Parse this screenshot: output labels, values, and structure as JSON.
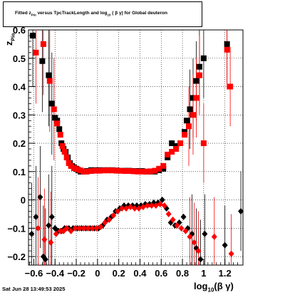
{
  "chart_data": {
    "type": "scatter",
    "title": "Fitted z_Pio versus TpcTrackLength and log10(βγ) for Global deuteron",
    "title_parts": [
      "Fitted  z",
      "Pio",
      "   versus TpcTrackLength and log",
      "10",
      " ( β γ) for Global deuteron"
    ],
    "xlabel": "log10(β γ)",
    "xlabel_parts": [
      "log",
      "10",
      "(β γ)"
    ],
    "ylabel": "z_Pio",
    "ylabel_parts": [
      "z",
      "Pio"
    ],
    "xlim": [
      -0.65,
      1.37
    ],
    "ylim": [
      -0.23,
      0.6
    ],
    "x_ticks": [
      -0.6,
      -0.4,
      -0.2,
      0,
      0.2,
      0.4,
      0.6,
      0.8,
      1,
      1.2
    ],
    "x_tick_labels": [
      "−0.6",
      "−0.4",
      "−0.2",
      "0",
      "0.2",
      "0.4",
      "0.6",
      "0.8",
      "1",
      "1.2"
    ],
    "y_ticks": [
      -0.2,
      -0.1,
      0,
      0.1,
      0.2,
      0.3,
      0.4,
      0.5,
      0.6
    ],
    "y_tick_labels": [
      "−0.2",
      "−0.1",
      "0",
      "0.1",
      "0.2",
      "0.3",
      "0.4",
      "0.5",
      "0.6"
    ],
    "grid": true,
    "series": [
      {
        "color": "#000000",
        "marker": "square",
        "points": [
          [
            -0.61,
            0.58
          ],
          [
            -0.52,
            0.49
          ],
          [
            -0.46,
            0.44
          ],
          [
            -0.43,
            0.34
          ],
          [
            -0.4,
            0.29
          ],
          [
            -0.38,
            0.28
          ],
          [
            -0.36,
            0.25
          ],
          [
            -0.34,
            0.2
          ],
          [
            -0.32,
            0.18
          ],
          [
            -0.3,
            0.17
          ],
          [
            -0.28,
            0.15
          ],
          [
            -0.26,
            0.13
          ],
          [
            -0.24,
            0.12
          ],
          [
            -0.22,
            0.115
          ],
          [
            -0.2,
            0.11
          ],
          [
            -0.18,
            0.105
          ],
          [
            -0.16,
            0.1
          ],
          [
            -0.14,
            0.1
          ],
          [
            -0.12,
            0.1
          ],
          [
            -0.1,
            0.102
          ],
          [
            -0.06,
            0.105
          ],
          [
            -0.02,
            0.105
          ],
          [
            0.02,
            0.105
          ],
          [
            0.06,
            0.105
          ],
          [
            0.1,
            0.105
          ],
          [
            0.14,
            0.105
          ],
          [
            0.18,
            0.104
          ],
          [
            0.22,
            0.103
          ],
          [
            0.26,
            0.103
          ],
          [
            0.3,
            0.103
          ],
          [
            0.34,
            0.102
          ],
          [
            0.38,
            0.102
          ],
          [
            0.42,
            0.102
          ],
          [
            0.46,
            0.1
          ],
          [
            0.5,
            0.1
          ],
          [
            0.54,
            0.1
          ],
          [
            0.58,
            0.105
          ],
          [
            0.62,
            0.11
          ],
          [
            0.66,
            0.15
          ],
          [
            0.7,
            0.2
          ],
          [
            0.74,
            0.19
          ],
          [
            0.78,
            0.2
          ],
          [
            0.82,
            0.24
          ],
          [
            0.84,
            0.28
          ],
          [
            0.87,
            0.32
          ],
          [
            0.9,
            0.36
          ],
          [
            0.93,
            0.42
          ],
          [
            0.96,
            0.47
          ],
          [
            1.0,
            0.5
          ],
          [
            1.22,
            0.55
          ]
        ]
      },
      {
        "color": "#ff0000",
        "marker": "square",
        "points": [
          [
            -0.58,
            0.52
          ],
          [
            -0.51,
            0.55
          ],
          [
            -0.45,
            0.42
          ],
          [
            -0.41,
            0.32
          ],
          [
            -0.38,
            0.27
          ],
          [
            -0.35,
            0.23
          ],
          [
            -0.33,
            0.19
          ],
          [
            -0.31,
            0.17
          ],
          [
            -0.29,
            0.15
          ],
          [
            -0.27,
            0.13
          ],
          [
            -0.25,
            0.12
          ],
          [
            -0.22,
            0.112
          ],
          [
            -0.19,
            0.108
          ],
          [
            -0.16,
            0.104
          ],
          [
            -0.13,
            0.1
          ],
          [
            -0.1,
            0.1
          ],
          [
            -0.06,
            0.102
          ],
          [
            -0.02,
            0.103
          ],
          [
            0.02,
            0.103
          ],
          [
            0.06,
            0.104
          ],
          [
            0.1,
            0.104
          ],
          [
            0.14,
            0.104
          ],
          [
            0.18,
            0.103
          ],
          [
            0.22,
            0.103
          ],
          [
            0.26,
            0.102
          ],
          [
            0.3,
            0.102
          ],
          [
            0.34,
            0.101
          ],
          [
            0.38,
            0.1
          ],
          [
            0.42,
            0.1
          ],
          [
            0.46,
            0.1
          ],
          [
            0.5,
            0.101
          ],
          [
            0.54,
            0.103
          ],
          [
            0.58,
            0.11
          ],
          [
            0.62,
            0.12
          ],
          [
            0.66,
            0.16
          ],
          [
            0.7,
            0.17
          ],
          [
            0.74,
            0.18
          ],
          [
            0.78,
            0.2
          ],
          [
            0.82,
            0.23
          ],
          [
            0.86,
            0.26
          ],
          [
            0.9,
            0.3
          ],
          [
            0.93,
            0.36
          ],
          [
            0.96,
            0.44
          ],
          [
            1.0,
            0.2
          ],
          [
            1.22,
            0.53
          ],
          [
            1.25,
            0.4
          ]
        ]
      },
      {
        "color": "#000000",
        "marker": "diamond",
        "points": [
          [
            -0.62,
            -0.12
          ],
          [
            -0.58,
            -0.06
          ],
          [
            -0.54,
            0.01
          ],
          [
            -0.51,
            -0.2
          ],
          [
            -0.49,
            -0.21
          ],
          [
            -0.46,
            -0.09
          ],
          [
            -0.43,
            -0.06
          ],
          [
            -0.4,
            -0.1
          ],
          [
            -0.37,
            -0.11
          ],
          [
            -0.34,
            -0.11
          ],
          [
            -0.31,
            -0.1
          ],
          [
            -0.27,
            -0.1
          ],
          [
            -0.23,
            -0.1
          ],
          [
            -0.19,
            -0.1
          ],
          [
            -0.15,
            -0.1
          ],
          [
            -0.11,
            -0.1
          ],
          [
            -0.07,
            -0.1
          ],
          [
            -0.03,
            -0.1
          ],
          [
            0.01,
            -0.1
          ],
          [
            0.05,
            -0.09
          ],
          [
            0.09,
            -0.07
          ],
          [
            0.13,
            -0.06
          ],
          [
            0.17,
            -0.04
          ],
          [
            0.21,
            -0.03
          ],
          [
            0.25,
            -0.02
          ],
          [
            0.29,
            -0.02
          ],
          [
            0.33,
            -0.02
          ],
          [
            0.37,
            -0.02
          ],
          [
            0.41,
            -0.02
          ],
          [
            0.45,
            -0.015
          ],
          [
            0.49,
            -0.015
          ],
          [
            0.53,
            -0.01
          ],
          [
            0.57,
            -0.01
          ],
          [
            0.61,
            0.0
          ],
          [
            0.65,
            -0.03
          ],
          [
            0.69,
            -0.08
          ],
          [
            0.73,
            -0.09
          ],
          [
            0.77,
            -0.08
          ],
          [
            0.81,
            -0.06
          ],
          [
            0.85,
            -0.1
          ],
          [
            0.89,
            -0.12
          ],
          [
            0.93,
            -0.17
          ],
          [
            0.97,
            -0.21
          ],
          [
            1.01,
            -0.12
          ],
          [
            1.2,
            -0.16
          ],
          [
            1.35,
            -0.04
          ]
        ]
      },
      {
        "color": "#ff0000",
        "marker": "diamond",
        "points": [
          [
            -0.56,
            -0.1
          ],
          [
            -0.5,
            -0.14
          ],
          [
            -0.44,
            -0.15
          ],
          [
            -0.39,
            -0.12
          ],
          [
            -0.35,
            -0.11
          ],
          [
            -0.32,
            -0.11
          ],
          [
            -0.29,
            -0.1
          ],
          [
            -0.25,
            -0.11
          ],
          [
            -0.21,
            -0.1
          ],
          [
            -0.17,
            -0.1
          ],
          [
            -0.13,
            -0.1
          ],
          [
            -0.09,
            -0.1
          ],
          [
            -0.05,
            -0.1
          ],
          [
            -0.01,
            -0.1
          ],
          [
            0.03,
            -0.095
          ],
          [
            0.07,
            -0.08
          ],
          [
            0.11,
            -0.07
          ],
          [
            0.15,
            -0.055
          ],
          [
            0.19,
            -0.04
          ],
          [
            0.23,
            -0.03
          ],
          [
            0.27,
            -0.03
          ],
          [
            0.31,
            -0.025
          ],
          [
            0.35,
            -0.03
          ],
          [
            0.39,
            -0.03
          ],
          [
            0.43,
            -0.025
          ],
          [
            0.47,
            -0.02
          ],
          [
            0.51,
            -0.02
          ],
          [
            0.55,
            -0.02
          ],
          [
            0.59,
            -0.015
          ],
          [
            0.63,
            -0.02
          ],
          [
            0.67,
            -0.05
          ],
          [
            0.71,
            -0.07
          ],
          [
            0.75,
            -0.09
          ],
          [
            0.79,
            -0.1
          ],
          [
            0.83,
            -0.11
          ],
          [
            0.87,
            -0.13
          ],
          [
            0.91,
            -0.15
          ],
          [
            0.95,
            -0.18
          ],
          [
            1.1,
            -0.13
          ],
          [
            1.26,
            -0.19
          ]
        ]
      }
    ]
  },
  "footer": {
    "timestamp": "Sat Jun 28 13:49:53 2025"
  }
}
